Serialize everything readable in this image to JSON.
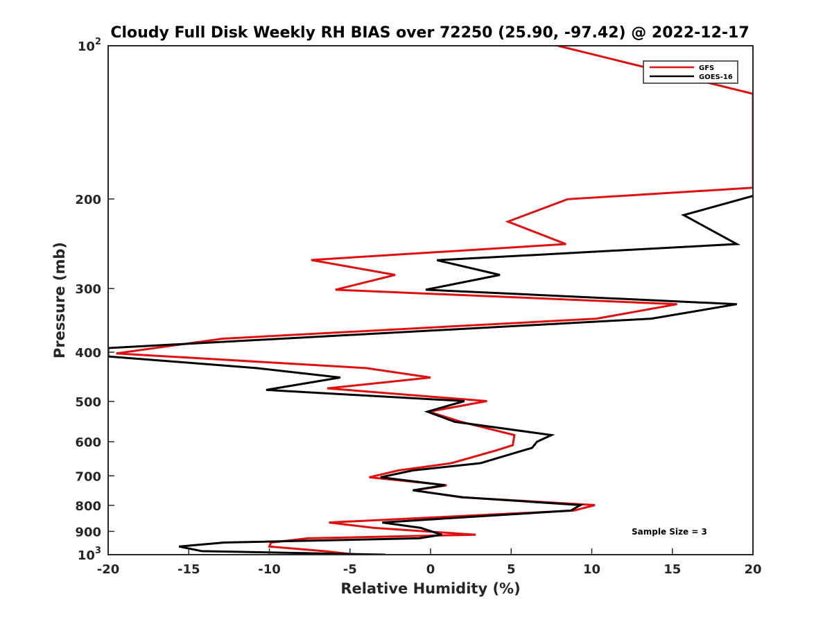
{
  "chart_data": {
    "type": "line",
    "title": "Cloudy Full Disk Weekly RH BIAS over 72250 (25.90, -97.42) @ 2022-12-17",
    "xlabel": "Relative Humidity (%)",
    "ylabel": "Pressure (mb)",
    "xlim": [
      -20,
      20
    ],
    "ylim": [
      100,
      1000
    ],
    "yscale": "log",
    "y_reversed": true,
    "x_ticks": [
      "-20",
      "-15",
      "-10",
      "-5",
      "0",
      "5",
      "10",
      "15",
      "20"
    ],
    "y_ticks": [
      {
        "value": 100,
        "label": "10",
        "sup": "2"
      },
      {
        "value": 200,
        "label": "200"
      },
      {
        "value": 300,
        "label": "300"
      },
      {
        "value": 400,
        "label": "400"
      },
      {
        "value": 500,
        "label": "500"
      },
      {
        "value": 600,
        "label": "600"
      },
      {
        "value": 700,
        "label": "700"
      },
      {
        "value": 800,
        "label": "800"
      },
      {
        "value": 900,
        "label": "900"
      },
      {
        "value": 1000,
        "label": "10",
        "sup": "3"
      }
    ],
    "grid": false,
    "legend_position": "top-right",
    "annotation": "Sample Size = 3",
    "series": [
      {
        "name": "GFS",
        "color": "#e01010",
        "points": [
          [
            7.9,
            100
          ],
          [
            20.0,
            124.3
          ],
          [
            20.0,
            190.1
          ],
          [
            8.5,
            200.2
          ],
          [
            4.8,
            221.6
          ],
          [
            8.4,
            245.3
          ],
          [
            -7.4,
            263.6
          ],
          [
            -2.2,
            282.0
          ],
          [
            -5.9,
            301.6
          ],
          [
            15.3,
            321.9
          ],
          [
            10.3,
            343.7
          ],
          [
            -12.9,
            376.4
          ],
          [
            -19.5,
            402.3
          ],
          [
            -4.0,
            429.9
          ],
          [
            0.0,
            448.6
          ],
          [
            -6.4,
            471.2
          ],
          [
            3.5,
            499.2
          ],
          [
            -0.1,
            523.7
          ],
          [
            1.9,
            548.3
          ],
          [
            5.2,
            582.1
          ],
          [
            5.1,
            609.4
          ],
          [
            4.1,
            623.4
          ],
          [
            1.3,
            660.9
          ],
          [
            -2.0,
            683.1
          ],
          [
            -3.8,
            704.6
          ],
          [
            1.0,
            730.6
          ],
          [
            -1.0,
            747.4
          ],
          [
            1.9,
            771.3
          ],
          [
            10.2,
            799.2
          ],
          [
            8.9,
            819.2
          ],
          [
            -6.3,
            864.6
          ],
          [
            -3.5,
            886.0
          ],
          [
            2.8,
            913.7
          ],
          [
            -7.6,
            928.7
          ],
          [
            -9.9,
            946.7
          ],
          [
            -10.0,
            964.1
          ],
          [
            -6.6,
            984.1
          ],
          [
            -4.6,
            1000
          ]
        ]
      },
      {
        "name": "GOES-16",
        "color": "#000000",
        "points": [
          [
            20.0,
            197.3
          ],
          [
            15.7,
            215.1
          ],
          [
            19.0,
            245.3
          ],
          [
            0.4,
            263.9
          ],
          [
            4.3,
            282.0
          ],
          [
            -0.3,
            301.6
          ],
          [
            19.0,
            321.9
          ],
          [
            13.7,
            343.7
          ],
          [
            -20.0,
            392.7
          ],
          [
            -20.0,
            407.8
          ],
          [
            -10.8,
            429.9
          ],
          [
            -5.6,
            448.6
          ],
          [
            -10.2,
            474.6
          ],
          [
            2.1,
            499.2
          ],
          [
            -0.2,
            523.7
          ],
          [
            1.5,
            548.3
          ],
          [
            7.5,
            582.1
          ],
          [
            6.6,
            599.8
          ],
          [
            6.3,
            616.6
          ],
          [
            3.1,
            660.9
          ],
          [
            -1.1,
            683.1
          ],
          [
            -3.1,
            704.6
          ],
          [
            0.9,
            730.6
          ],
          [
            -1.1,
            747.4
          ],
          [
            2.0,
            771.3
          ],
          [
            9.3,
            799.2
          ],
          [
            8.7,
            819.2
          ],
          [
            -3.0,
            864.6
          ],
          [
            -0.6,
            886.0
          ],
          [
            0.7,
            913.7
          ],
          [
            -0.7,
            928.7
          ],
          [
            -12.8,
            946.7
          ],
          [
            -15.6,
            964.1
          ],
          [
            -14.2,
            984.1
          ],
          [
            -2.8,
            1000
          ]
        ]
      }
    ]
  }
}
